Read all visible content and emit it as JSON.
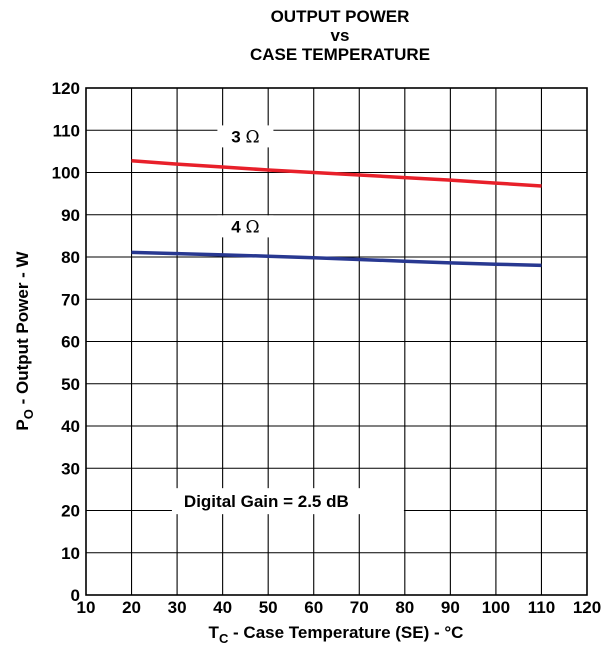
{
  "chart_data": {
    "type": "line",
    "title": [
      "OUTPUT POWER",
      "vs",
      "CASE TEMPERATURE"
    ],
    "xlabel": {
      "main": "T",
      "sub": "C",
      "rest": " - Case Temperature (SE) - °C"
    },
    "ylabel": {
      "main": "P",
      "sub": "O",
      "rest": " - Output Power - W"
    },
    "xlim": [
      10,
      120
    ],
    "ylim": [
      0,
      120
    ],
    "xticks": [
      10,
      20,
      30,
      40,
      50,
      60,
      70,
      80,
      90,
      100,
      110,
      120
    ],
    "yticks": [
      0,
      10,
      20,
      30,
      40,
      50,
      60,
      70,
      80,
      90,
      100,
      110,
      120
    ],
    "grid": true,
    "series": [
      {
        "name": "3 Ω",
        "label_value": "3",
        "label_unit": "Ω",
        "color": "#e8202a",
        "x": [
          20,
          30,
          40,
          50,
          60,
          70,
          80,
          90,
          100,
          110
        ],
        "y": [
          102.8,
          102.0,
          101.3,
          100.6,
          100.0,
          99.4,
          98.8,
          98.2,
          97.5,
          96.8
        ]
      },
      {
        "name": "4 Ω",
        "label_value": "4",
        "label_unit": "Ω",
        "color": "#283891",
        "x": [
          20,
          30,
          40,
          50,
          60,
          70,
          80,
          90,
          100,
          110
        ],
        "y": [
          81.1,
          80.8,
          80.5,
          80.2,
          79.8,
          79.4,
          79.0,
          78.6,
          78.3,
          78.0
        ]
      }
    ],
    "annotations": [
      {
        "text": "Digital Gain = 2.5 dB"
      }
    ]
  }
}
